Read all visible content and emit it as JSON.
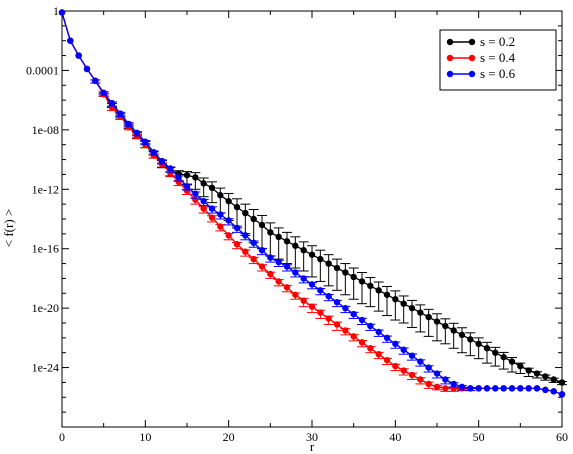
{
  "chart_data": {
    "type": "line",
    "xlabel": "r",
    "ylabel": "< f(r) >",
    "xlim": [
      0,
      60
    ],
    "ylim_log10": [
      -28,
      0
    ],
    "y_scale": "log",
    "x_ticks": [
      0,
      10,
      20,
      30,
      40,
      50,
      60
    ],
    "x_tick_labels": [
      "0",
      "10",
      "20",
      "30",
      "40",
      "50",
      "60"
    ],
    "y_ticks_log10": [
      0,
      -4,
      -8,
      -12,
      -16,
      -20,
      -24
    ],
    "y_tick_labels": [
      "1",
      "0.0001",
      "1e-08",
      "1e-12",
      "1e-16",
      "1e-20",
      "1e-24"
    ],
    "legend_position": "top-right",
    "x": [
      0,
      1,
      2,
      3,
      4,
      5,
      6,
      7,
      8,
      9,
      10,
      11,
      12,
      13,
      14,
      15,
      16,
      17,
      18,
      19,
      20,
      21,
      22,
      23,
      24,
      25,
      26,
      27,
      28,
      29,
      30,
      31,
      32,
      33,
      34,
      35,
      36,
      37,
      38,
      39,
      40,
      41,
      42,
      43,
      44,
      45,
      46,
      47,
      48,
      49,
      50,
      51,
      52,
      53,
      54,
      55,
      56,
      57,
      58,
      59,
      60
    ],
    "series": [
      {
        "name": "s = 0.2",
        "color": "#000000",
        "log10_values": [
          -0.1,
          -2.0,
          -3.0,
          -3.9,
          -4.7,
          -5.6,
          -6.3,
          -7.0,
          -7.7,
          -8.3,
          -8.9,
          -9.6,
          -10.2,
          -10.7,
          -10.95,
          -11.05,
          -11.2,
          -11.6,
          -11.9,
          -12.4,
          -12.8,
          -13.2,
          -13.6,
          -14.0,
          -14.4,
          -14.9,
          -15.2,
          -15.5,
          -15.8,
          -16.1,
          -16.4,
          -16.7,
          -17.0,
          -17.3,
          -17.6,
          -17.9,
          -18.2,
          -18.5,
          -18.8,
          -19.1,
          -19.4,
          -19.7,
          -20.0,
          -20.3,
          -20.6,
          -20.9,
          -21.2,
          -21.5,
          -21.8,
          -22.1,
          -22.4,
          -22.7,
          -23.0,
          -23.3,
          -23.6,
          -23.9,
          -24.2,
          -24.4,
          -24.6,
          -24.8,
          -25.0
        ],
        "log10_errors": [
          0.05,
          0.1,
          0.1,
          0.1,
          0.1,
          0.15,
          0.2,
          0.2,
          0.2,
          0.25,
          0.3,
          0.3,
          0.35,
          0.4,
          0.5,
          0.6,
          0.8,
          0.9,
          1.0,
          1.2,
          1.3,
          1.4,
          1.5,
          1.6,
          1.6,
          1.6,
          1.5,
          1.5,
          1.5,
          1.4,
          1.5,
          1.5,
          1.5,
          1.5,
          1.5,
          1.5,
          1.5,
          1.4,
          1.4,
          1.4,
          1.4,
          1.3,
          1.3,
          1.3,
          1.3,
          1.3,
          1.2,
          1.2,
          1.2,
          1.1,
          1.0,
          1.0,
          0.9,
          0.8,
          0.7,
          0.5,
          0.4,
          0.3,
          0.25,
          0.2,
          0.15
        ]
      },
      {
        "name": "s = 0.4",
        "color": "#ff0000",
        "log10_values": [
          -0.1,
          -2.0,
          -3.0,
          -3.9,
          -4.7,
          -5.6,
          -6.5,
          -7.1,
          -7.8,
          -8.4,
          -9.0,
          -9.7,
          -10.3,
          -10.9,
          -11.5,
          -12.1,
          -12.7,
          -13.3,
          -13.9,
          -14.5,
          -15.1,
          -15.7,
          -16.2,
          -16.7,
          -17.2,
          -17.7,
          -18.2,
          -18.6,
          -19.1,
          -19.5,
          -19.9,
          -20.3,
          -20.7,
          -21.1,
          -21.5,
          -21.9,
          -22.3,
          -22.7,
          -23.1,
          -23.5,
          -23.9,
          -24.2,
          -24.5,
          -24.8,
          -25.1,
          -25.3,
          -25.4,
          -25.4,
          -25.4,
          -25.4,
          -25.4,
          -25.4,
          -25.4,
          -25.4,
          -25.4,
          -25.4,
          -25.4,
          -25.4,
          -25.5,
          -25.6,
          -25.8
        ],
        "log10_errors": [
          0.05,
          0.1,
          0.1,
          0.1,
          0.15,
          0.15,
          0.2,
          0.2,
          0.2,
          0.2,
          0.2,
          0.2,
          0.2,
          0.25,
          0.25,
          0.25,
          0.3,
          0.3,
          0.3,
          0.3,
          0.3,
          0.3,
          0.3,
          0.3,
          0.3,
          0.3,
          0.3,
          0.3,
          0.3,
          0.4,
          0.4,
          0.4,
          0.4,
          0.4,
          0.3,
          0.3,
          0.3,
          0.3,
          0.3,
          0.3,
          0.3,
          0.3,
          0.3,
          0.3,
          0.3,
          0.2,
          0.2,
          0.2,
          0.15,
          0.15,
          0.1,
          0.1,
          0.1,
          0.1,
          0.1,
          0.1,
          0.1,
          0.1,
          0.1,
          0.1,
          0.1
        ]
      },
      {
        "name": "s = 0.6",
        "color": "#0000ff",
        "log10_values": [
          -0.1,
          -2.0,
          -3.0,
          -3.9,
          -4.7,
          -5.5,
          -6.2,
          -6.9,
          -7.6,
          -8.2,
          -8.8,
          -9.5,
          -10.1,
          -10.6,
          -11.2,
          -11.8,
          -12.3,
          -12.8,
          -13.3,
          -13.7,
          -14.1,
          -14.6,
          -15.1,
          -15.6,
          -16.1,
          -16.6,
          -16.9,
          -17.2,
          -17.6,
          -18.0,
          -18.4,
          -18.8,
          -19.2,
          -19.6,
          -20.0,
          -20.4,
          -20.8,
          -21.2,
          -21.6,
          -22.0,
          -22.4,
          -22.8,
          -23.2,
          -23.6,
          -24.0,
          -24.4,
          -24.8,
          -25.1,
          -25.3,
          -25.4,
          -25.4,
          -25.4,
          -25.4,
          -25.4,
          -25.4,
          -25.4,
          -25.4,
          -25.4,
          -25.5,
          -25.6,
          -25.8
        ],
        "log10_errors": [
          0.05,
          0.1,
          0.1,
          0.1,
          0.15,
          0.15,
          0.2,
          0.2,
          0.2,
          0.2,
          0.2,
          0.2,
          0.2,
          0.25,
          0.25,
          0.25,
          0.3,
          0.3,
          0.3,
          0.3,
          0.3,
          0.3,
          0.3,
          0.3,
          0.3,
          0.3,
          0.3,
          0.3,
          0.3,
          0.3,
          0.3,
          0.3,
          0.3,
          0.3,
          0.3,
          0.3,
          0.3,
          0.3,
          0.3,
          0.3,
          0.3,
          0.3,
          0.3,
          0.3,
          0.3,
          0.3,
          0.3,
          0.2,
          0.2,
          0.15,
          0.1,
          0.1,
          0.1,
          0.1,
          0.1,
          0.1,
          0.1,
          0.1,
          0.1,
          0.1,
          0.1
        ]
      }
    ]
  }
}
